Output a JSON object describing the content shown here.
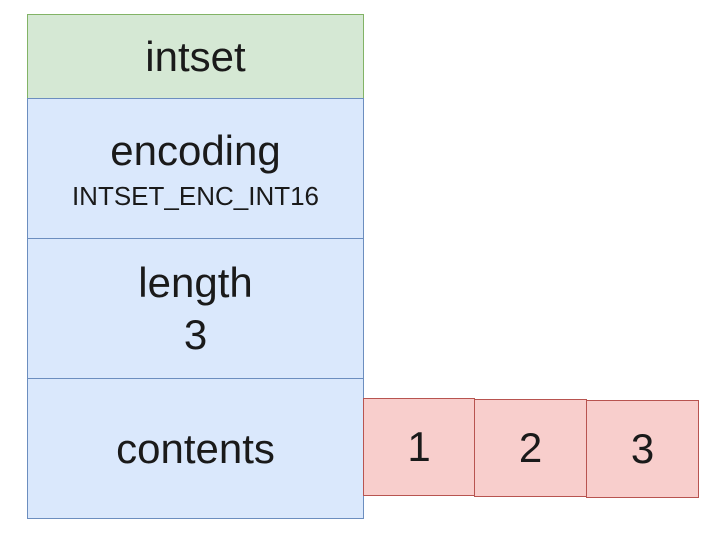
{
  "header": {
    "label": "intset"
  },
  "fields": {
    "encoding": {
      "label": "encoding",
      "value": "INTSET_ENC_INT16"
    },
    "length": {
      "label": "length",
      "value": "3"
    },
    "contents": {
      "label": "contents"
    }
  },
  "contents_array": [
    "1",
    "2",
    "3"
  ],
  "colors": {
    "header_fill": "#d5e8d4",
    "header_stroke": "#82b366",
    "field_fill": "#dae8fc",
    "field_stroke": "#6c8ebf",
    "element_fill": "#f8cecc",
    "element_stroke": "#b85450"
  }
}
